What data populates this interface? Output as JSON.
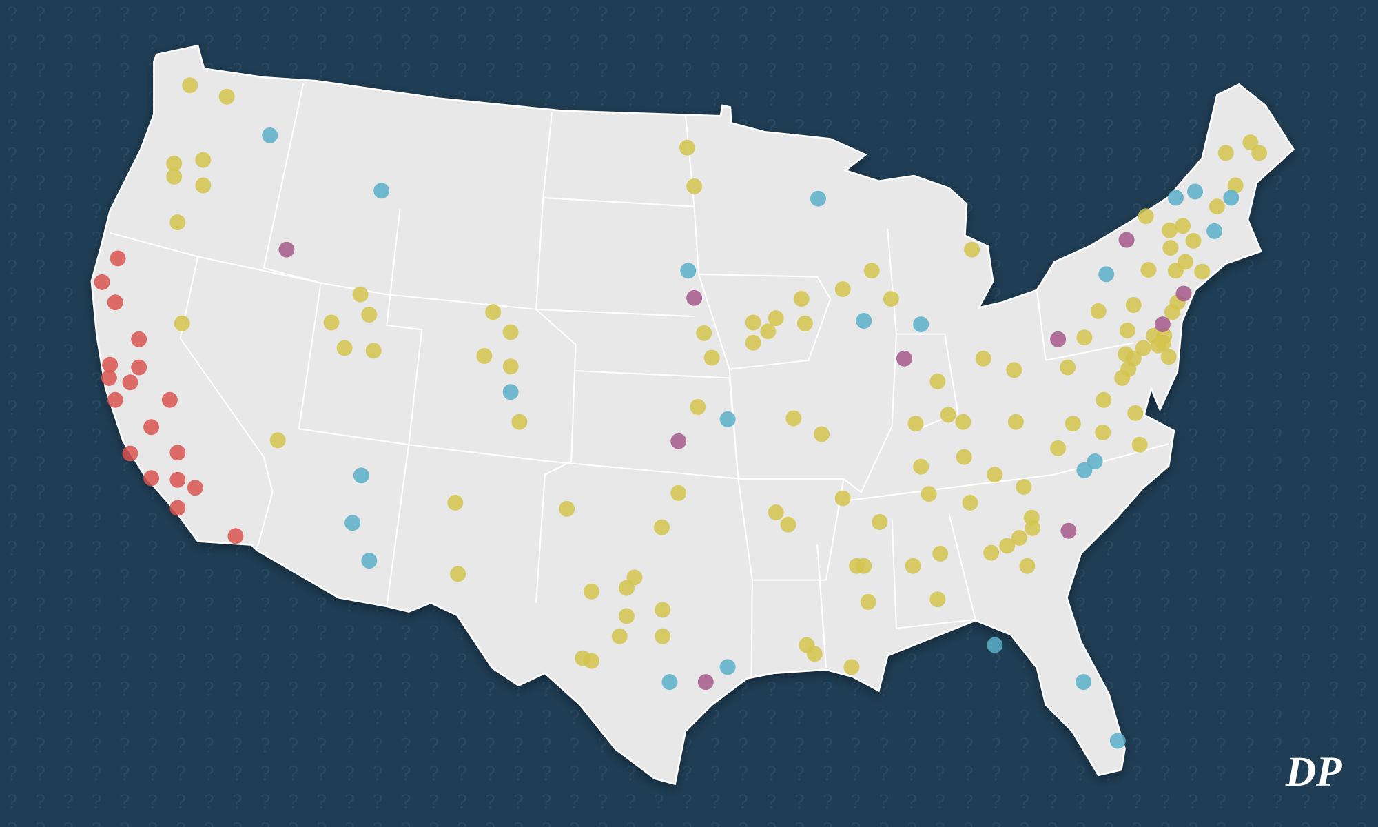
{
  "background_glyph": "?",
  "logo": "DP"
}
